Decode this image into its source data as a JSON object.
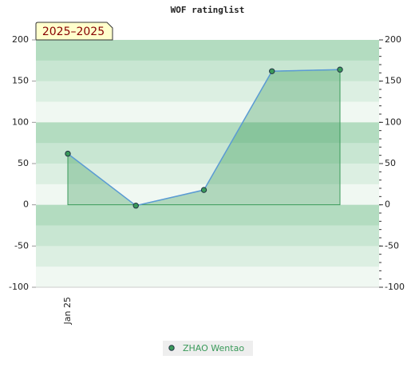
{
  "chart_data": {
    "type": "area-line",
    "title": "WOF ratinglist",
    "badge": "2025–2025",
    "categories": [
      "Jan 25",
      null,
      null,
      null,
      null
    ],
    "series": [
      {
        "name": "ZHAO Wentao",
        "color": "#3a9a5a",
        "line_color": "#5b9bd5",
        "values": [
          62,
          -1,
          18,
          162,
          164
        ]
      }
    ],
    "ylim": [
      -100,
      200
    ],
    "yticks": [
      -100,
      -50,
      0,
      50,
      100,
      150,
      200
    ],
    "y2lim": [
      -100,
      200
    ],
    "y2ticks": [
      -100,
      -50,
      0,
      50,
      100,
      150,
      200
    ],
    "legend": "bottom"
  }
}
